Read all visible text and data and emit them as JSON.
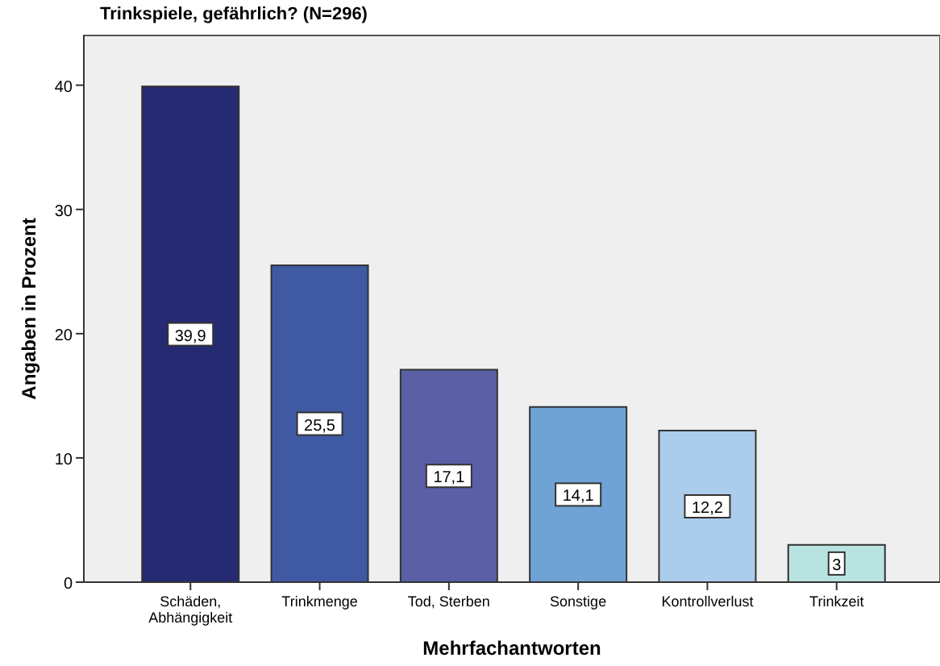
{
  "chart_data": {
    "type": "bar",
    "title": "Trinkspiele, gefährlich? (N=296)",
    "xlabel": "Mehrfachantworten",
    "ylabel": "Angaben in Prozent",
    "categories": [
      "Schäden, Abhängigkeit",
      "Trinkmenge",
      "Tod, Sterben",
      "Sonstige",
      "Kontrollverlust",
      "Trinkzeit"
    ],
    "values": [
      39.9,
      25.5,
      17.1,
      14.1,
      12.2,
      3
    ],
    "value_labels": [
      "39,9",
      "25,5",
      "17,1",
      "14,1",
      "12,2",
      "3"
    ],
    "colors": [
      "#262a73",
      "#3f5aa3",
      "#5a5fa6",
      "#6fa3d6",
      "#abcdeb",
      "#b9e3e1"
    ],
    "ylim": [
      0,
      44
    ],
    "yticks": [
      0,
      10,
      20,
      30,
      40
    ],
    "grid": false
  }
}
